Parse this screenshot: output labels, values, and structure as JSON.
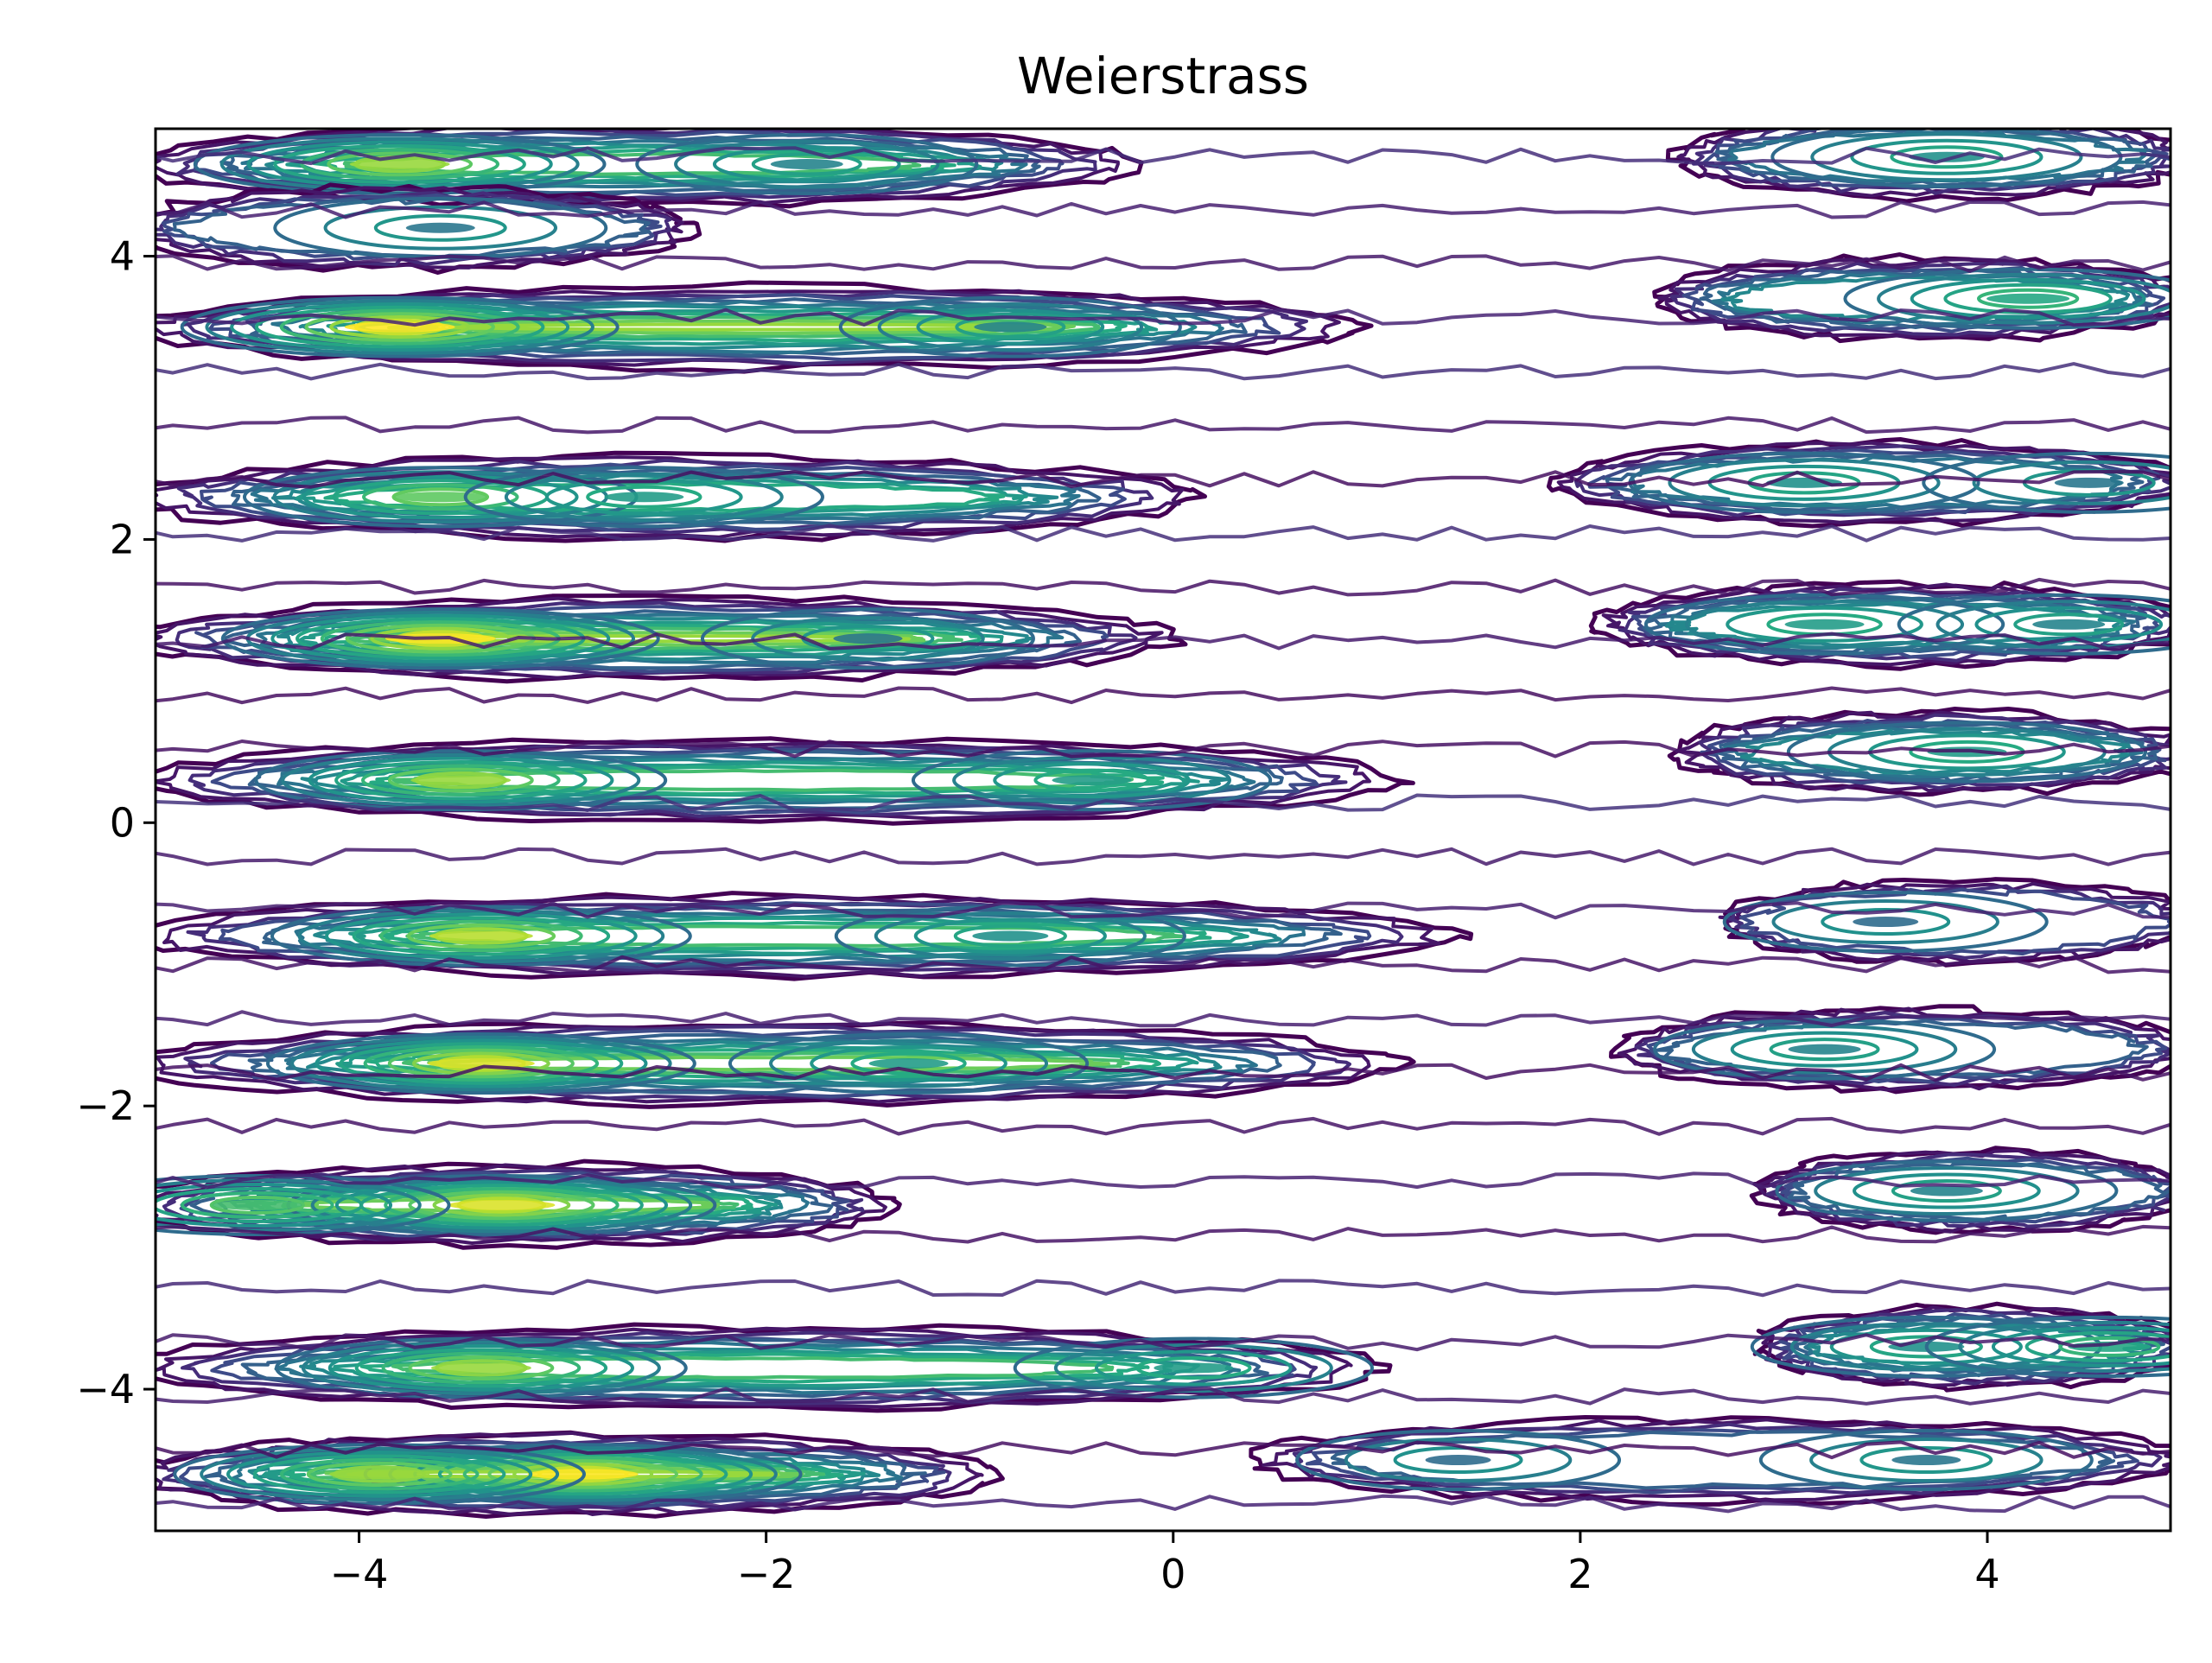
{
  "chart_data": {
    "type": "contour",
    "title": "Weierstrass",
    "xlabel": "",
    "ylabel": "",
    "xlim": [
      -5,
      4.9
    ],
    "ylim": [
      -5,
      4.9
    ],
    "x_ticks": [
      -4,
      -2,
      0,
      2,
      4
    ],
    "x_tick_labels": [
      "−4",
      "−2",
      "0",
      "2",
      "4"
    ],
    "y_ticks": [
      -4,
      -2,
      0,
      2,
      4
    ],
    "y_tick_labels": [
      "−4",
      "−2",
      "0",
      "2",
      "4"
    ],
    "grid": false,
    "legend": "none",
    "colormap": "viridis",
    "colors": [
      "#440154",
      "#3b528b",
      "#21918c",
      "#5ec962",
      "#fde725"
    ],
    "levels": 12,
    "bands": [
      {
        "y": 4.65,
        "x0": -5.0,
        "x1": -0.3,
        "peaks": [
          [
            -3.8,
            0.85
          ],
          [
            -1.8,
            0.45
          ]
        ]
      },
      {
        "y": 4.7,
        "x0": 2.6,
        "x1": 4.9,
        "peaks": [
          [
            3.8,
            0.5
          ]
        ]
      },
      {
        "y": 4.2,
        "x0": -5.0,
        "x1": -2.5,
        "peaks": [
          [
            -3.6,
            0.4
          ]
        ]
      },
      {
        "y": 3.5,
        "x0": -5.0,
        "x1": 0.8,
        "peaks": [
          [
            -3.8,
            1.0
          ],
          [
            -0.8,
            0.45
          ]
        ]
      },
      {
        "y": 3.7,
        "x0": 2.5,
        "x1": 4.9,
        "peaks": [
          [
            4.2,
            0.6
          ]
        ]
      },
      {
        "y": 2.3,
        "x0": -5.0,
        "x1": 0.0,
        "peaks": [
          [
            -3.6,
            0.75
          ],
          [
            -2.6,
            0.55
          ]
        ]
      },
      {
        "y": 2.4,
        "x0": 2.0,
        "x1": 4.9,
        "peaks": [
          [
            3.1,
            0.5
          ],
          [
            4.5,
            0.4
          ]
        ]
      },
      {
        "y": 1.3,
        "x0": -5.0,
        "x1": -0.1,
        "peaks": [
          [
            -3.6,
            1.0
          ],
          [
            -1.5,
            0.4
          ]
        ]
      },
      {
        "y": 1.4,
        "x0": 2.2,
        "x1": 4.9,
        "peaks": [
          [
            3.2,
            0.55
          ],
          [
            4.4,
            0.45
          ]
        ]
      },
      {
        "y": 0.3,
        "x0": -5.0,
        "x1": 1.0,
        "peaks": [
          [
            -3.5,
            0.85
          ],
          [
            -0.4,
            0.55
          ]
        ]
      },
      {
        "y": 0.5,
        "x0": 2.6,
        "x1": 4.9,
        "peaks": [
          [
            3.9,
            0.55
          ]
        ]
      },
      {
        "y": -0.8,
        "x0": -5.0,
        "x1": 1.3,
        "peaks": [
          [
            -3.4,
            0.9
          ],
          [
            -0.8,
            0.5
          ]
        ]
      },
      {
        "y": -0.7,
        "x0": 2.8,
        "x1": 4.9,
        "peaks": [
          [
            3.5,
            0.35
          ]
        ]
      },
      {
        "y": -1.7,
        "x0": -5.0,
        "x1": 1.0,
        "peaks": [
          [
            -3.4,
            0.95
          ],
          [
            -1.3,
            0.55
          ]
        ]
      },
      {
        "y": -1.6,
        "x0": 2.3,
        "x1": 4.9,
        "peaks": [
          [
            3.2,
            0.45
          ]
        ]
      },
      {
        "y": -2.7,
        "x0": -5.0,
        "x1": -1.5,
        "peaks": [
          [
            -3.3,
            0.95
          ],
          [
            -4.5,
            0.7
          ]
        ]
      },
      {
        "y": -2.6,
        "x0": 3.0,
        "x1": 4.9,
        "peaks": [
          [
            3.8,
            0.45
          ]
        ]
      },
      {
        "y": -3.85,
        "x0": -5.0,
        "x1": 0.9,
        "peaks": [
          [
            -3.4,
            0.85
          ],
          [
            0.1,
            0.55
          ]
        ]
      },
      {
        "y": -3.7,
        "x0": 3.0,
        "x1": 4.9,
        "peaks": [
          [
            3.7,
            0.5
          ],
          [
            4.6,
            0.6
          ]
        ]
      },
      {
        "y": -4.6,
        "x0": -5.0,
        "x1": -1.0,
        "peaks": [
          [
            -2.9,
            1.0
          ],
          [
            -3.9,
            0.85
          ]
        ]
      },
      {
        "y": -4.5,
        "x0": 0.5,
        "x1": 4.9,
        "peaks": [
          [
            1.4,
            0.35
          ],
          [
            3.7,
            0.4
          ]
        ]
      }
    ]
  }
}
